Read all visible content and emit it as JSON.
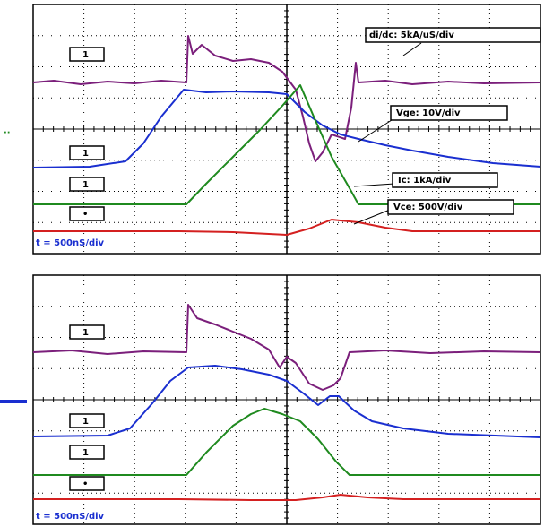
{
  "panels": [
    {
      "time_scale": "t = 500nS/div",
      "markers": [
        "1",
        "1",
        "1",
        "•"
      ],
      "labels": [
        "di/dc: 5kA/uS/div",
        "Vge: 10V/div",
        "Ic: 1kA/div",
        "Vce: 500V/div"
      ]
    },
    {
      "time_scale": "t = 500nS/div",
      "markers": [
        "1",
        "1",
        "1",
        "•"
      ]
    }
  ]
}
